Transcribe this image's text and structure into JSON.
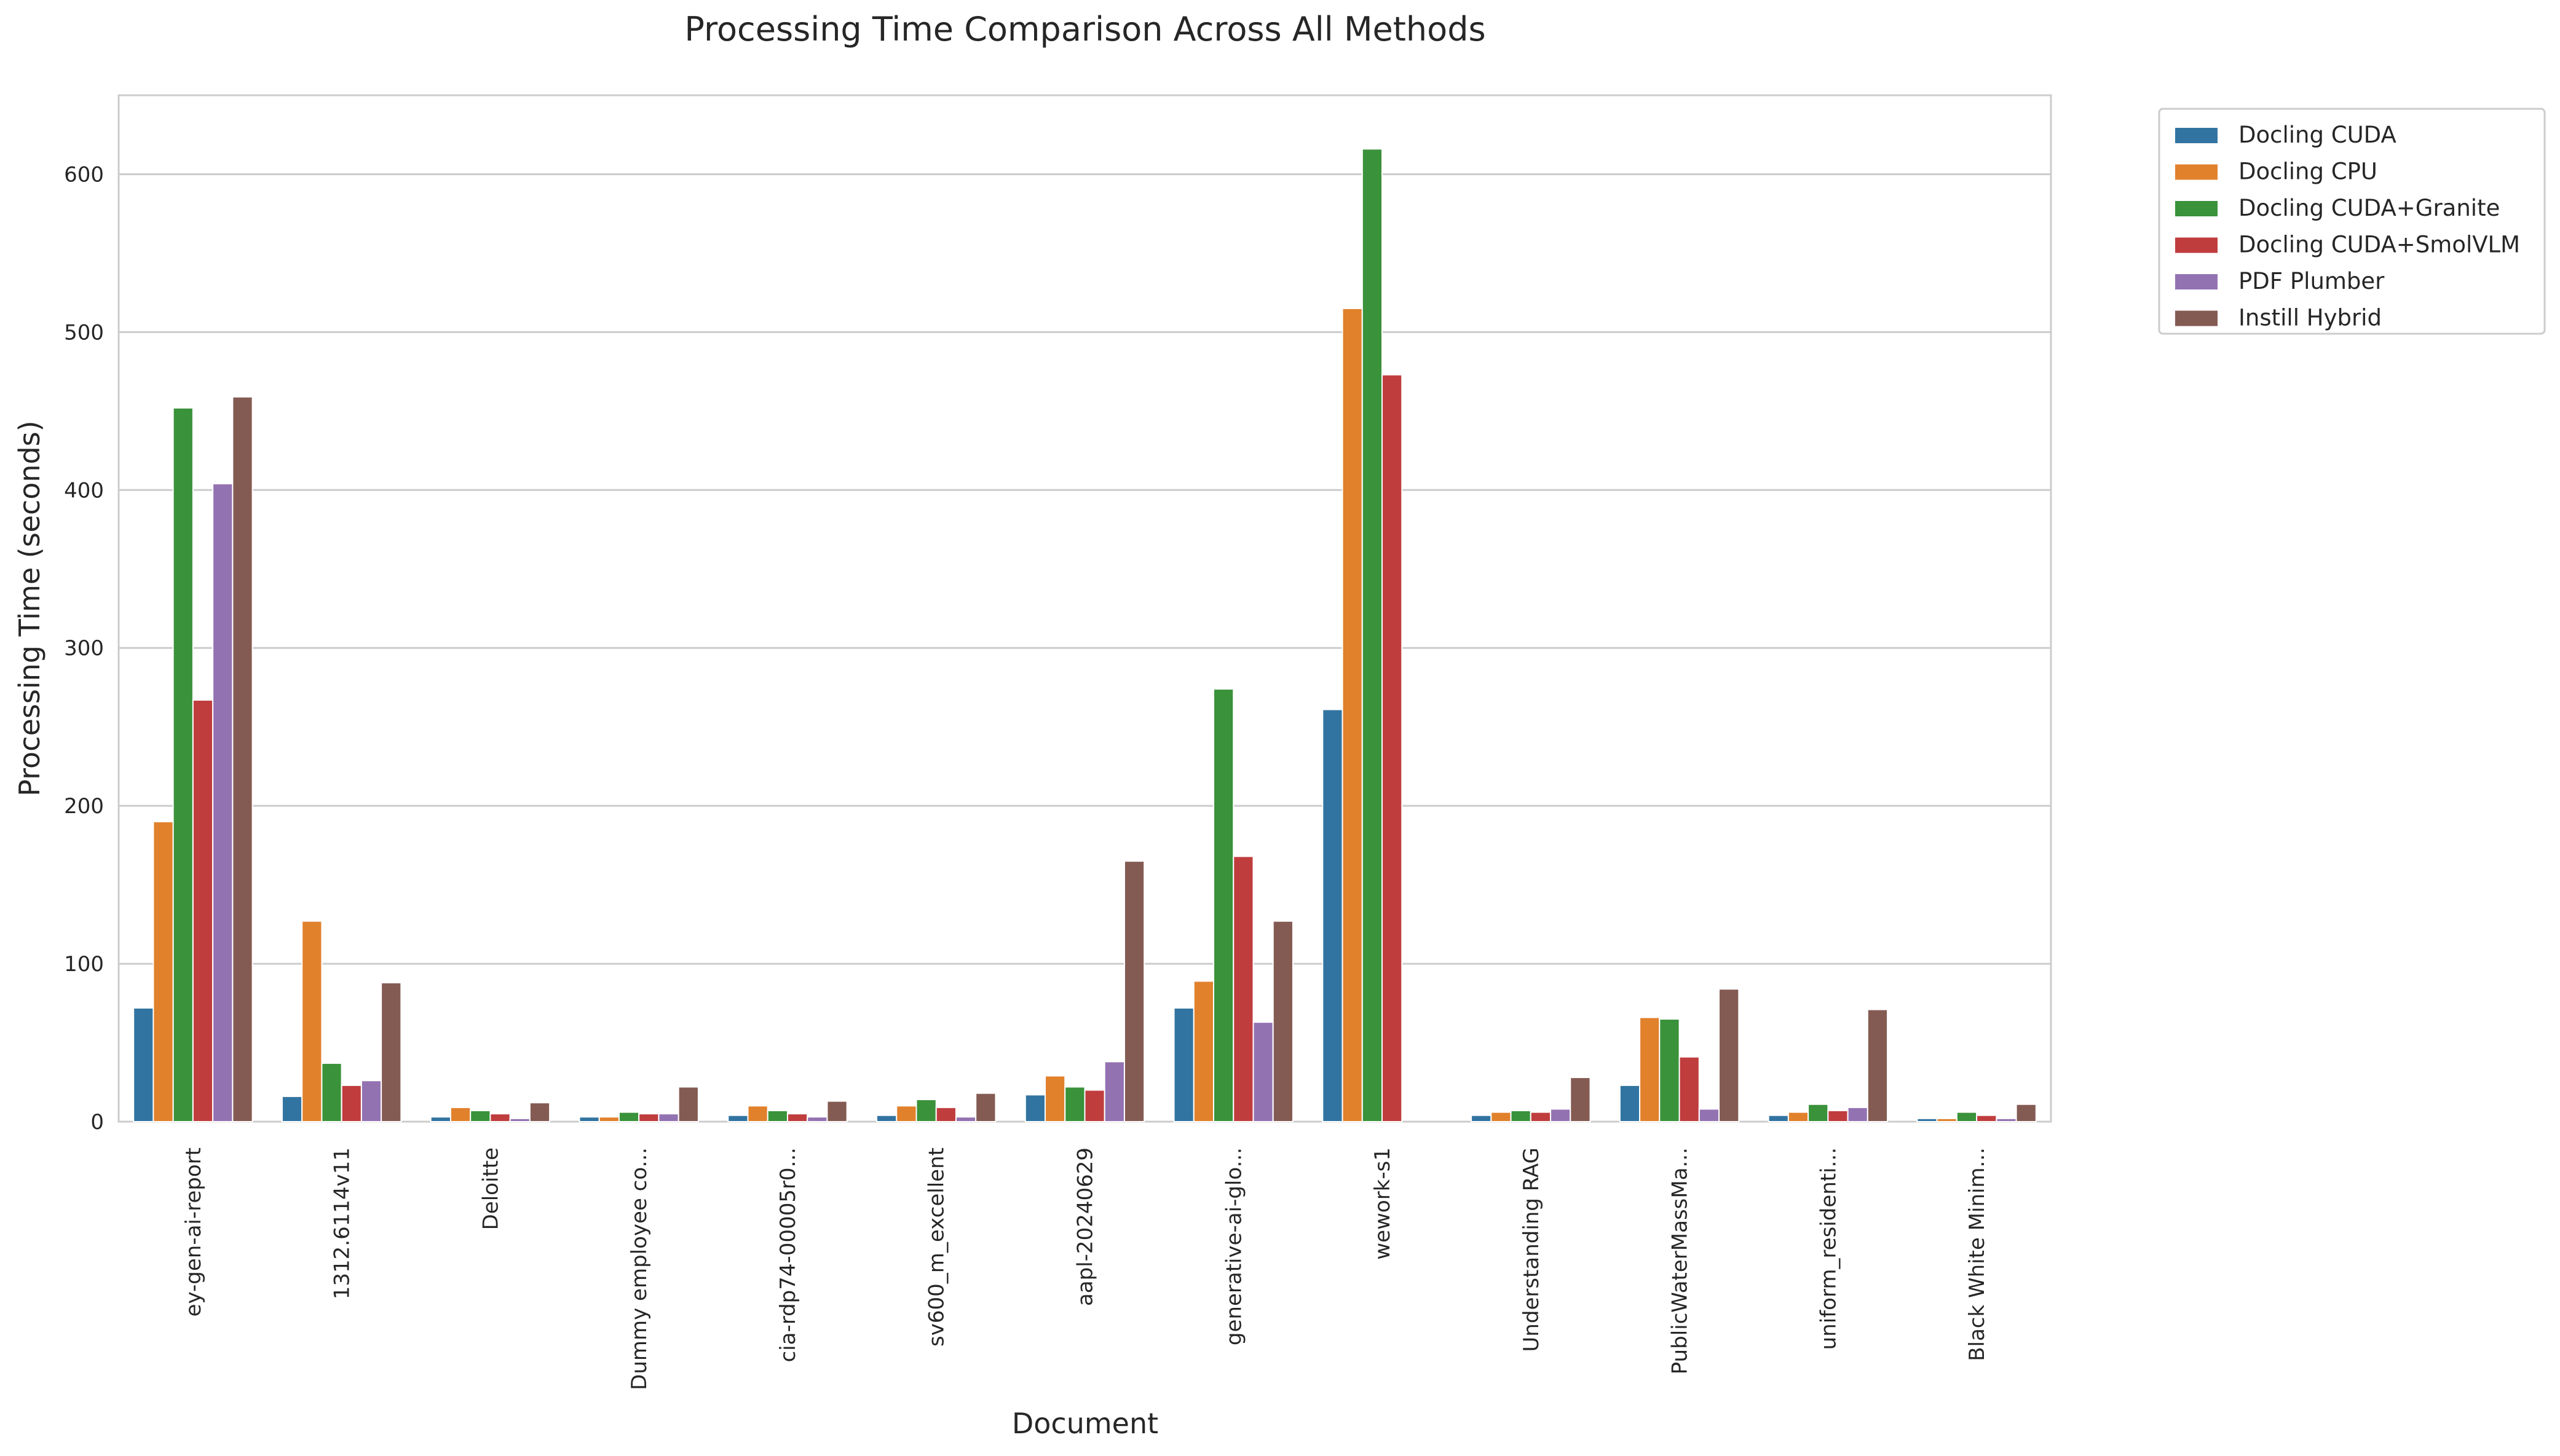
{
  "chart_data": {
    "type": "bar",
    "title": "Processing Time Comparison Across All Methods",
    "xlabel": "Document",
    "ylabel": "Processing Time (seconds)",
    "ylim": [
      0,
      650
    ],
    "yticks": [
      0,
      100,
      200,
      300,
      400,
      500,
      600
    ],
    "grid": true,
    "legend_position": "outside-top-right",
    "categories": [
      "ey-gen-ai-report",
      "1312.6114v11",
      "Deloitte",
      "Dummy employee co...",
      "cia-rdp74-00005r0...",
      "sv600_m_excellent",
      "aapl-20240629",
      "generative-ai-glo...",
      "wework-s1",
      "Understanding RAG",
      "PublicWaterMassMa...",
      "uniform_residenti...",
      "Black White Minim..."
    ],
    "series": [
      {
        "name": "Docling CUDA",
        "color": "#3274a1",
        "values": [
          72,
          16,
          3,
          3,
          4,
          4,
          17,
          72,
          261,
          4,
          23,
          4,
          2
        ]
      },
      {
        "name": "Docling CPU",
        "color": "#e1812c",
        "values": [
          190,
          127,
          9,
          3,
          10,
          10,
          29,
          89,
          515,
          6,
          66,
          6,
          2
        ]
      },
      {
        "name": "Docling CUDA+Granite",
        "color": "#3a923a",
        "values": [
          452,
          37,
          7,
          6,
          7,
          14,
          22,
          274,
          616,
          7,
          65,
          11,
          6
        ]
      },
      {
        "name": "Docling CUDA+SmolVLM",
        "color": "#c03d3e",
        "values": [
          267,
          23,
          5,
          5,
          5,
          9,
          20,
          168,
          473,
          6,
          41,
          7,
          4
        ]
      },
      {
        "name": "PDF Plumber",
        "color": "#9372b2",
        "values": [
          404,
          26,
          2,
          5,
          3,
          3,
          38,
          63,
          0,
          8,
          8,
          9,
          2
        ]
      },
      {
        "name": "Instill Hybrid",
        "color": "#845b53",
        "values": [
          459,
          88,
          12,
          22,
          13,
          18,
          165,
          127,
          0,
          28,
          84,
          71,
          11
        ]
      }
    ]
  }
}
